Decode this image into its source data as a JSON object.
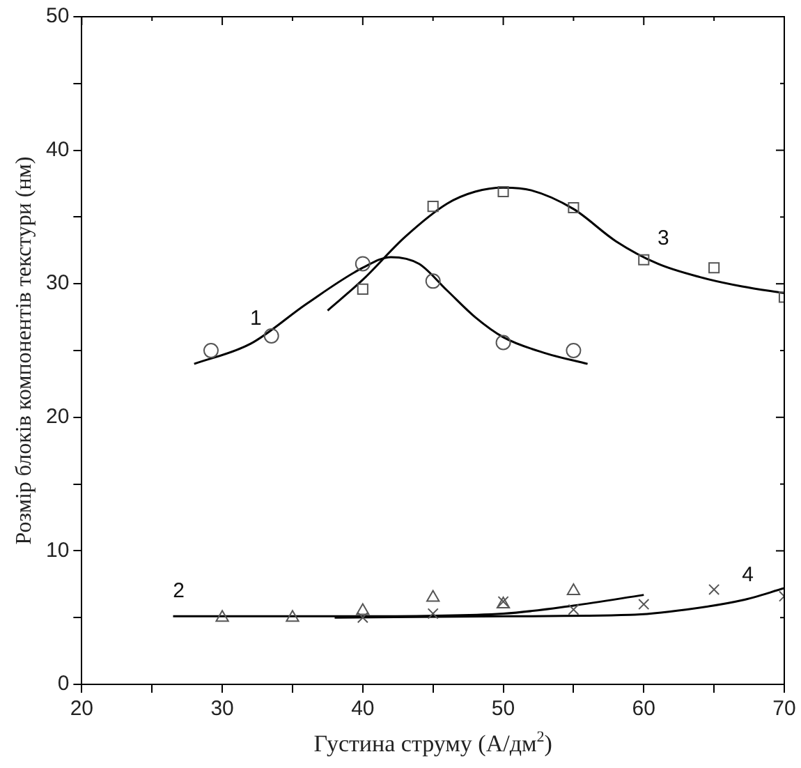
{
  "chart_data": {
    "type": "scatter",
    "xlabel": "Густина струму (А/дм$^{2}$)",
    "ylabel": "Розмір блоків компонентів текстури (нм)",
    "xlim": [
      20,
      70
    ],
    "ylim": [
      0,
      50
    ],
    "xticks": [
      20,
      {
        "value": 25,
        "label": null
      },
      30,
      {
        "value": 35,
        "label": null
      },
      40,
      {
        "value": 45,
        "label": null
      },
      50,
      {
        "value": 55,
        "label": null
      },
      60,
      {
        "value": 65,
        "label": null
      },
      70
    ],
    "yticks": [
      0,
      {
        "value": 5,
        "label": null
      },
      10,
      {
        "value": 15,
        "label": null
      },
      20,
      {
        "value": 25,
        "label": null
      },
      30,
      {
        "value": 35,
        "label": null
      },
      40,
      {
        "value": 45,
        "label": null
      },
      50
    ],
    "grid": false,
    "legend": false,
    "series": [
      {
        "type": "scatter",
        "marker": "circle",
        "color": "#555555",
        "x": [
          29.2,
          33.5,
          40,
          45,
          50,
          55
        ],
        "values": [
          25,
          26.1,
          31.5,
          30.2,
          25.6,
          25
        ]
      },
      {
        "type": "scatter",
        "marker": "square",
        "color": "#555555",
        "x": [
          40,
          45,
          50,
          55,
          60,
          65,
          70
        ],
        "values": [
          29.6,
          35.8,
          36.9,
          35.7,
          31.8,
          31.2,
          29
        ]
      },
      {
        "type": "scatter",
        "marker": "triangle",
        "color": "#555555",
        "x": [
          30,
          35,
          40,
          45,
          50,
          55
        ],
        "values": [
          5,
          5,
          5.5,
          6.5,
          6,
          7
        ]
      },
      {
        "type": "scatter",
        "marker": "cross",
        "color": "#555555",
        "x": [
          40,
          45,
          50,
          55,
          60,
          65,
          70
        ],
        "values": [
          5,
          5.3,
          6.2,
          5.6,
          6,
          7.1,
          6.6
        ]
      },
      {
        "type": "line",
        "marker": "none",
        "color": "#000000",
        "x": [
          28,
          32,
          36,
          40,
          42,
          44,
          46,
          48,
          50,
          53,
          56
        ],
        "values": [
          24,
          25.5,
          28.5,
          31.2,
          32,
          31.5,
          29.5,
          27.5,
          26,
          24.8,
          24
        ]
      },
      {
        "type": "line",
        "marker": "none",
        "color": "#000000",
        "x": [
          37.5,
          40,
          43,
          46,
          48,
          50,
          52,
          55,
          58,
          61,
          64,
          67,
          70
        ],
        "values": [
          28,
          30.3,
          33.5,
          36,
          36.9,
          37.2,
          37,
          35.6,
          33.2,
          31.5,
          30.5,
          29.8,
          29.3
        ]
      },
      {
        "type": "line",
        "marker": "none",
        "color": "#000000",
        "x": [
          26.5,
          40,
          50,
          55,
          60
        ],
        "values": [
          5.1,
          5.1,
          5.3,
          5.9,
          6.7
        ]
      },
      {
        "type": "line",
        "marker": "none",
        "color": "#000000",
        "x": [
          38,
          50,
          59,
          63,
          67,
          70
        ],
        "values": [
          5,
          5.1,
          5.2,
          5.6,
          6.3,
          7.2
        ]
      }
    ],
    "annotations": [
      {
        "text": "1",
        "x": 32,
        "y": 25.5
      },
      {
        "text": "2",
        "x": 26.5,
        "y": 5.1
      },
      {
        "text": "3",
        "x": 61,
        "y": 31.5
      },
      {
        "text": "4",
        "x": 67,
        "y": 6.3
      }
    ]
  }
}
